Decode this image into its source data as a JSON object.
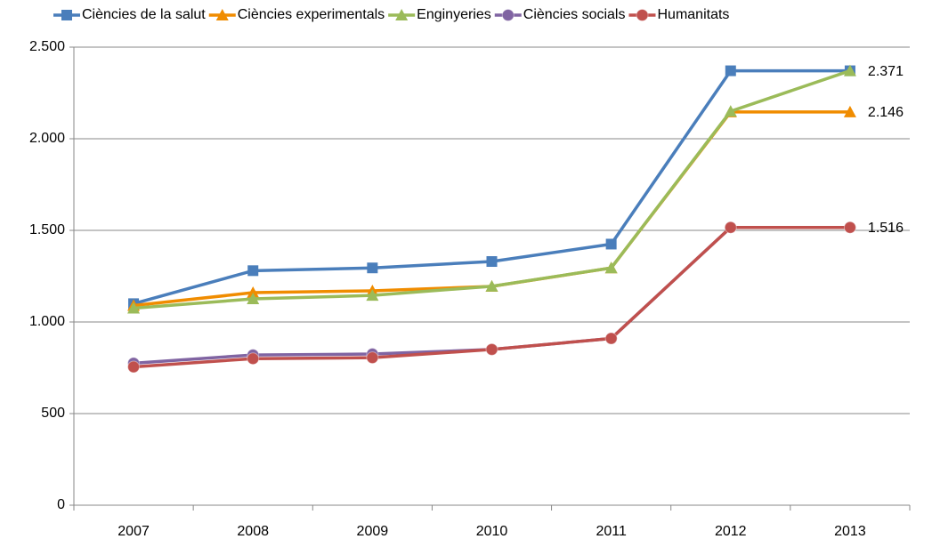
{
  "chart_data": {
    "type": "line",
    "categories": [
      "2007",
      "2008",
      "2009",
      "2010",
      "2011",
      "2012",
      "2013"
    ],
    "series": [
      {
        "name": "Ciències de la salut",
        "color": "#4a7ebb",
        "marker": "square",
        "values": [
          1100,
          1280,
          1295,
          1330,
          1425,
          2371,
          2371
        ],
        "value_labels": [
          null,
          null,
          null,
          null,
          null,
          null,
          "2.371"
        ]
      },
      {
        "name": "Ciències experimentals",
        "color": "#f08c00",
        "marker": "triangle",
        "values": [
          1090,
          1160,
          1170,
          1194,
          1295,
          2146,
          2146
        ],
        "value_labels": [
          null,
          null,
          null,
          null,
          null,
          null,
          "2.146"
        ]
      },
      {
        "name": "Enginyeries",
        "color": "#9bbb59",
        "marker": "triangle",
        "values": [
          1075,
          1126,
          1145,
          1195,
          1295,
          2150,
          2371
        ]
      },
      {
        "name": "Ciències socials",
        "color": "#8064a2",
        "marker": "circle",
        "values": [
          775,
          820,
          825,
          850,
          910,
          1516,
          1516
        ]
      },
      {
        "name": "Humanitats",
        "color": "#c0504d",
        "marker": "circle",
        "values": [
          755,
          800,
          805,
          850,
          910,
          1516,
          1516
        ],
        "value_labels": [
          null,
          null,
          null,
          null,
          null,
          null,
          "1.516"
        ]
      }
    ],
    "ylim": [
      0,
      2500
    ],
    "yticks": [
      0,
      500,
      {
        "value": 1000,
        "label": "1.000"
      },
      {
        "value": 1500,
        "label": "1.500"
      },
      {
        "value": 2000,
        "label": "2.000"
      },
      {
        "value": 2500,
        "label": "2.500"
      }
    ],
    "grid": true,
    "legend": "top"
  }
}
